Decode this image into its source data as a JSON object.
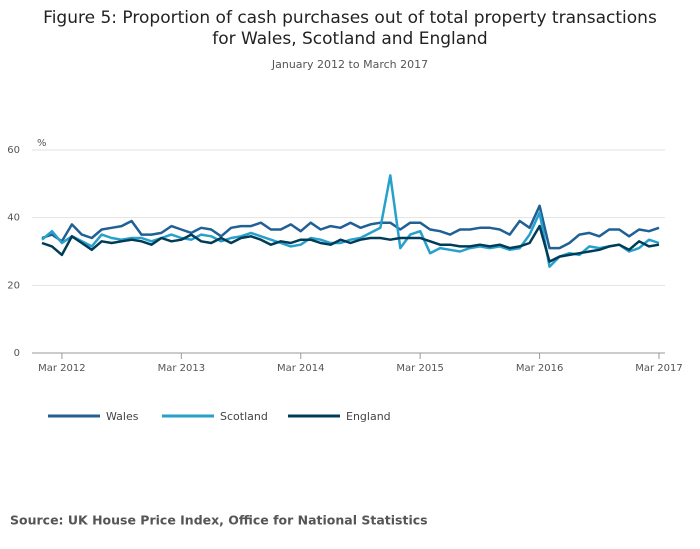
{
  "chart_data": {
    "type": "line",
    "title": [
      "Figure 5: Proportion of cash purchases out of total property transactions",
      "for Wales, Scotland and England"
    ],
    "subtitle": "January 2012 to March 2017",
    "y_label": "%",
    "source": "Source: UK House Price Index, Office for National Statistics",
    "categories": [
      null,
      null,
      "Mar 2012",
      null,
      null,
      null,
      null,
      null,
      null,
      null,
      null,
      null,
      null,
      null,
      "Mar 2013",
      null,
      null,
      null,
      null,
      null,
      null,
      null,
      null,
      null,
      null,
      null,
      "Mar 2014",
      null,
      null,
      null,
      null,
      null,
      null,
      null,
      null,
      null,
      null,
      null,
      "Mar 2015",
      null,
      null,
      null,
      null,
      null,
      null,
      null,
      null,
      null,
      null,
      null,
      "Mar 2016",
      null,
      null,
      null,
      null,
      null,
      null,
      null,
      null,
      null,
      null,
      null,
      "Mar 2017"
    ],
    "series": [
      {
        "name": "Wales",
        "color": "#206095",
        "values": [
          34,
          35,
          33,
          38,
          35,
          34,
          36.5,
          37,
          37.5,
          39,
          35,
          35,
          35.5,
          37.5,
          36.5,
          35.5,
          37,
          36.5,
          34.5,
          37,
          37.5,
          37.5,
          38.5,
          36.5,
          36.5,
          38,
          36,
          38.5,
          36.5,
          37.5,
          37,
          38.5,
          37,
          38,
          38.5,
          38.5,
          36.5,
          38.5,
          38.5,
          36.5,
          36,
          35,
          36.5,
          36.5,
          37,
          37,
          36.5,
          35,
          39,
          37,
          43.5,
          31,
          31,
          32.5,
          35,
          35.5,
          34.5,
          36.5,
          36.5,
          34.5,
          36.5,
          36,
          37
        ]
      },
      {
        "name": "Scotland",
        "color": "#27a0cc",
        "values": [
          33.5,
          36,
          32.5,
          34.5,
          33,
          31.5,
          35,
          34,
          33.5,
          34,
          34,
          33,
          34,
          35,
          34,
          33.5,
          35,
          34.5,
          33,
          34,
          34.5,
          35.5,
          34.5,
          33.5,
          32.5,
          31.5,
          32,
          34,
          33.5,
          32.5,
          32.5,
          33.5,
          34,
          35.5,
          37,
          52.5,
          31,
          35,
          36,
          29.5,
          31,
          30.5,
          30,
          31,
          31.5,
          31,
          31.5,
          30.5,
          31,
          35,
          41.5,
          25.5,
          28.5,
          29.5,
          29,
          31.5,
          31,
          31.5,
          32,
          30,
          31,
          33.5,
          32.5
        ]
      },
      {
        "name": "England",
        "color": "#003c57",
        "values": [
          32.5,
          31.5,
          29,
          34.5,
          32.5,
          30.5,
          33,
          32.5,
          33,
          33.5,
          33,
          32,
          34,
          33,
          33.5,
          35,
          33,
          32.5,
          34,
          32.5,
          34,
          34.5,
          33.5,
          32,
          33,
          32.5,
          33.5,
          33.5,
          32.5,
          32,
          33.5,
          32.5,
          33.5,
          34,
          34,
          33.5,
          34,
          34,
          34,
          33,
          32,
          32,
          31.5,
          31.5,
          32,
          31.5,
          32,
          31,
          31.5,
          32.5,
          37.5,
          27,
          28.5,
          29,
          29.5,
          30,
          30.5,
          31.5,
          32,
          30.5,
          33,
          31.5,
          32
        ]
      }
    ],
    "ylim": [
      0,
      60
    ],
    "yticks": [
      0,
      20,
      40,
      60
    ],
    "grid": true
  }
}
